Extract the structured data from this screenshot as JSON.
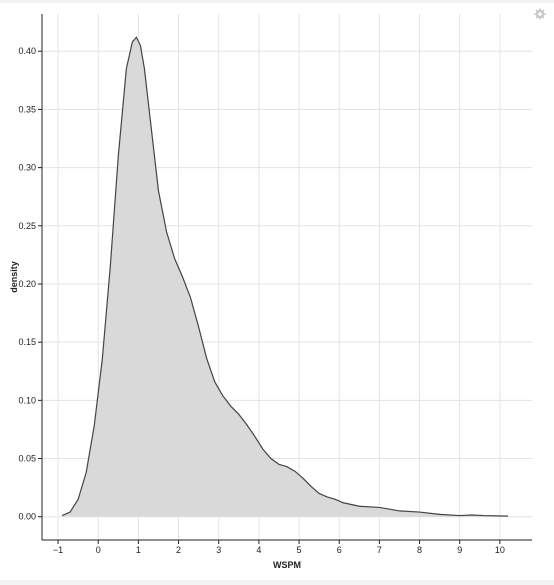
{
  "chart_data": {
    "type": "area",
    "xlabel": "WSPM",
    "ylabel": "density",
    "xlim": [
      -1.4,
      10.8
    ],
    "ylim": [
      -0.02,
      0.432
    ],
    "x_ticks": [
      -1,
      0,
      1,
      2,
      3,
      4,
      5,
      6,
      7,
      8,
      9,
      10
    ],
    "y_ticks": [
      0.0,
      0.05,
      0.1,
      0.15,
      0.2,
      0.25,
      0.3,
      0.35,
      0.4
    ],
    "y_tick_labels": [
      "0.00",
      "0.05",
      "0.10",
      "0.15",
      "0.20",
      "0.25",
      "0.30",
      "0.35",
      "0.40"
    ],
    "grid": true,
    "fill_color": "#d9d9d9",
    "line_color": "#444444",
    "series": [
      {
        "x": [
          -0.9,
          -0.7,
          -0.5,
          -0.3,
          -0.1,
          0.1,
          0.3,
          0.5,
          0.7,
          0.85,
          0.95,
          1.05,
          1.15,
          1.3,
          1.5,
          1.7,
          1.9,
          2.1,
          2.3,
          2.5,
          2.7,
          2.9,
          3.1,
          3.3,
          3.5,
          3.7,
          3.9,
          4.1,
          4.3,
          4.5,
          4.7,
          4.9,
          5.1,
          5.3,
          5.5,
          5.7,
          5.9,
          6.1,
          6.5,
          7.0,
          7.5,
          8.0,
          8.5,
          9.0,
          9.3,
          9.6,
          10.2
        ],
        "y": [
          0.001,
          0.004,
          0.015,
          0.038,
          0.078,
          0.135,
          0.215,
          0.31,
          0.385,
          0.408,
          0.412,
          0.405,
          0.385,
          0.34,
          0.28,
          0.245,
          0.222,
          0.206,
          0.188,
          0.163,
          0.136,
          0.116,
          0.104,
          0.095,
          0.088,
          0.079,
          0.069,
          0.058,
          0.05,
          0.045,
          0.043,
          0.039,
          0.033,
          0.026,
          0.02,
          0.017,
          0.015,
          0.012,
          0.009,
          0.008,
          0.005,
          0.004,
          0.002,
          0.001,
          0.0015,
          0.001,
          0.0005
        ]
      }
    ]
  }
}
